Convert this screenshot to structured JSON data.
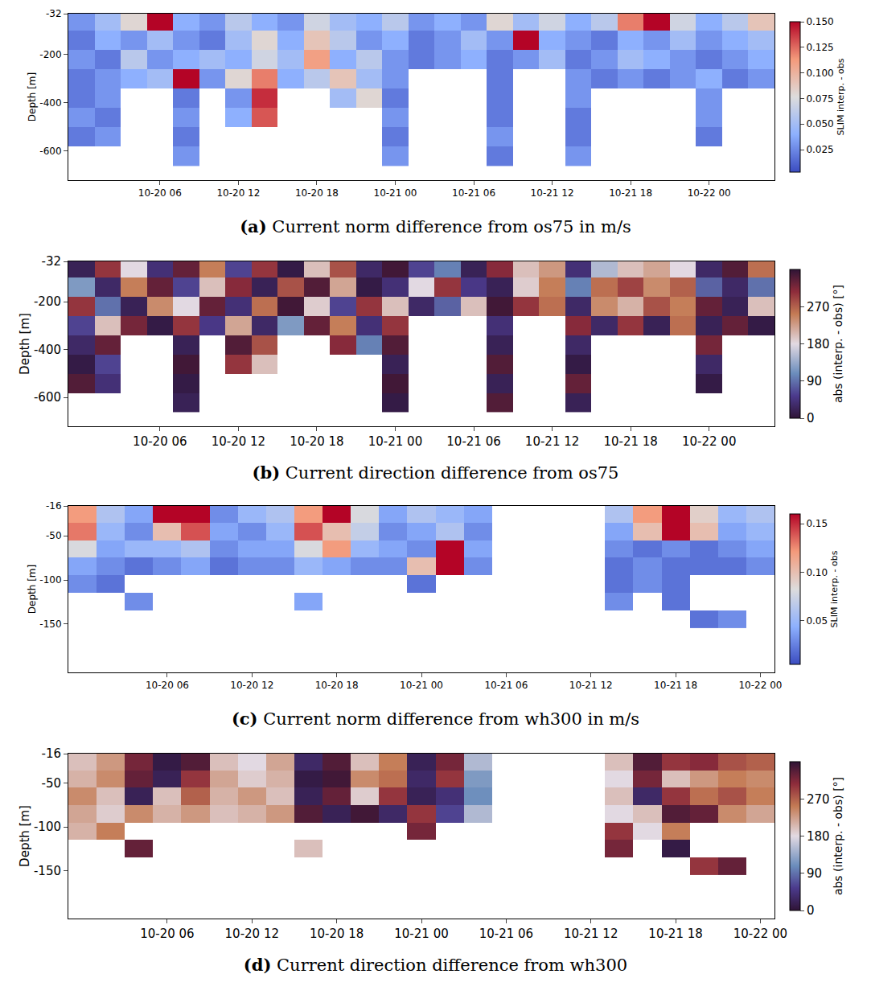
{
  "chart_data": [
    {
      "type": "heatmap",
      "panel": "(a)",
      "title": "Current norm difference from os75 in m/s",
      "y_label": "Depth [m]",
      "colorbar_title": "SLIM interp. - obs",
      "color": "coolwarm",
      "categories": [
        null,
        null,
        null,
        "10-20 06",
        null,
        null,
        "10-20 12",
        null,
        null,
        "10-20 18",
        null,
        null,
        "10-21 00",
        null,
        null,
        "10-21 06",
        null,
        null,
        "10-21 12",
        null,
        null,
        "10-21 18",
        null,
        null,
        "10-22 00",
        null,
        null
      ],
      "y": [
        -60,
        -140,
        -220,
        -300,
        -380,
        -460,
        -540,
        -620
      ],
      "z": [
        [
          0.03,
          0.05,
          0.08,
          0.15,
          0.04,
          0.03,
          0.06,
          0.04,
          0.03,
          0.07,
          0.05,
          0.04,
          0.06,
          0.03,
          0.04,
          0.03,
          0.08,
          0.05,
          0.07,
          0.04,
          0.06,
          0.12,
          0.15,
          0.07,
          0.04,
          0.06,
          0.09
        ],
        [
          0.02,
          0.04,
          0.03,
          0.05,
          0.03,
          0.02,
          0.05,
          0.08,
          0.04,
          0.09,
          0.06,
          0.03,
          0.04,
          0.02,
          0.03,
          0.05,
          0.03,
          0.15,
          0.04,
          0.03,
          0.02,
          0.04,
          0.03,
          0.05,
          0.03,
          0.04,
          0.05
        ],
        [
          0.03,
          0.02,
          0.06,
          0.03,
          0.04,
          0.05,
          0.04,
          0.07,
          0.05,
          0.11,
          0.04,
          0.06,
          0.03,
          0.02,
          0.03,
          0.04,
          0.02,
          0.03,
          0.05,
          0.02,
          0.03,
          0.05,
          0.04,
          0.03,
          0.02,
          0.03,
          0.04
        ],
        [
          0.02,
          0.03,
          0.04,
          0.05,
          0.15,
          0.03,
          0.08,
          0.12,
          0.04,
          0.06,
          0.09,
          0.05,
          0.03,
          null,
          null,
          null,
          0.02,
          null,
          null,
          0.03,
          0.02,
          0.03,
          0.02,
          0.03,
          0.04,
          0.02,
          0.03
        ],
        [
          0.02,
          0.03,
          null,
          null,
          0.02,
          null,
          0.03,
          0.14,
          null,
          null,
          0.05,
          0.08,
          0.02,
          null,
          null,
          null,
          0.02,
          null,
          null,
          0.03,
          null,
          null,
          null,
          null,
          0.03,
          null,
          null
        ],
        [
          0.03,
          0.02,
          null,
          null,
          0.03,
          null,
          0.04,
          0.13,
          null,
          null,
          null,
          null,
          0.03,
          null,
          null,
          null,
          0.02,
          null,
          null,
          0.02,
          null,
          null,
          null,
          null,
          0.03,
          null,
          null
        ],
        [
          0.02,
          0.03,
          null,
          null,
          0.02,
          null,
          null,
          null,
          null,
          null,
          null,
          null,
          0.02,
          null,
          null,
          null,
          0.03,
          null,
          null,
          0.02,
          null,
          null,
          null,
          null,
          0.02,
          null,
          null
        ],
        [
          null,
          null,
          null,
          null,
          0.03,
          null,
          null,
          null,
          null,
          null,
          null,
          null,
          0.03,
          null,
          null,
          null,
          0.02,
          null,
          null,
          0.03,
          null,
          null,
          null,
          null,
          null,
          null,
          null
        ]
      ],
      "ylim": [
        -720,
        -32
      ],
      "yticks": [
        -32,
        -200,
        -400,
        -600
      ],
      "colorbar_range": [
        0.003,
        0.15
      ],
      "colorbar_ticks": [
        0.025,
        {
          "value": 0.05,
          "label": "0.050"
        },
        0.075,
        {
          "value": 0.1,
          "label": "0.100"
        },
        0.125,
        {
          "value": 0.15,
          "label": "0.150"
        }
      ]
    },
    {
      "type": "heatmap",
      "panel": "(b)",
      "title": "Current direction difference from os75",
      "y_label": "Depth [m]",
      "colorbar_title": "abs (interp. - obs) [°]",
      "color": "twilight",
      "categories": [
        null,
        null,
        null,
        "10-20 06",
        null,
        null,
        "10-20 12",
        null,
        null,
        "10-20 18",
        null,
        null,
        "10-21 00",
        null,
        null,
        "10-21 06",
        null,
        null,
        "10-21 12",
        null,
        null,
        "10-21 18",
        null,
        null,
        "10-22 00",
        null,
        null
      ],
      "y": [
        -60,
        -140,
        -220,
        -300,
        -380,
        -460,
        -540,
        -620
      ],
      "z": [
        [
          20,
          300,
          180,
          40,
          330,
          250,
          60,
          300,
          10,
          200,
          280,
          30,
          350,
          60,
          100,
          20,
          310,
          200,
          230,
          40,
          150,
          200,
          220,
          180,
          30,
          340,
          260
        ],
        [
          120,
          30,
          250,
          330,
          60,
          200,
          310,
          20,
          280,
          340,
          220,
          10,
          40,
          180,
          300,
          50,
          20,
          190,
          250,
          100,
          260,
          290,
          240,
          270,
          80,
          30,
          90
        ],
        [
          300,
          90,
          20,
          240,
          180,
          330,
          40,
          260,
          350,
          190,
          60,
          300,
          200,
          30,
          80,
          200,
          350,
          300,
          260,
          30,
          240,
          210,
          280,
          250,
          330,
          20,
          200
        ],
        [
          60,
          200,
          320,
          10,
          300,
          50,
          220,
          30,
          120,
          330,
          250,
          40,
          300,
          null,
          null,
          null,
          40,
          null,
          null,
          310,
          30,
          300,
          20,
          260,
          20,
          330,
          10
        ],
        [
          30,
          330,
          null,
          null,
          20,
          null,
          340,
          280,
          null,
          null,
          310,
          100,
          340,
          null,
          null,
          null,
          20,
          null,
          null,
          30,
          null,
          null,
          null,
          null,
          320,
          null,
          null
        ],
        [
          10,
          60,
          null,
          null,
          350,
          null,
          300,
          200,
          null,
          null,
          null,
          null,
          20,
          null,
          null,
          null,
          340,
          null,
          null,
          10,
          null,
          null,
          null,
          null,
          30,
          null,
          null
        ],
        [
          340,
          40,
          null,
          null,
          10,
          null,
          null,
          null,
          null,
          null,
          null,
          null,
          350,
          null,
          null,
          null,
          20,
          null,
          null,
          330,
          null,
          null,
          null,
          null,
          10,
          null,
          null
        ],
        [
          null,
          null,
          null,
          null,
          20,
          null,
          null,
          null,
          null,
          null,
          null,
          null,
          10,
          null,
          null,
          null,
          340,
          null,
          null,
          20,
          null,
          null,
          null,
          null,
          null,
          null,
          null
        ]
      ],
      "ylim": [
        -720,
        -32
      ],
      "yticks": [
        -32,
        -200,
        -400,
        -600
      ],
      "colorbar_range": [
        0,
        360
      ],
      "colorbar_ticks": [
        0,
        90,
        180,
        270
      ]
    },
    {
      "type": "heatmap",
      "panel": "(c)",
      "title": "Current norm difference from wh300 in m/s",
      "y_label": "Depth [m]",
      "colorbar_title": "SLIM interp. - obs",
      "color": "coolwarm",
      "categories": [
        null,
        null,
        null,
        "10-20 06",
        null,
        null,
        "10-20 12",
        null,
        null,
        "10-20 18",
        null,
        null,
        "10-21 00",
        null,
        null,
        "10-21 06",
        null,
        null,
        "10-21 12",
        null,
        null,
        "10-21 18",
        null,
        null,
        "10-22 00"
      ],
      "y": [
        -25,
        -45,
        -65,
        -85,
        -105,
        -125,
        -145
      ],
      "z": [
        [
          0.12,
          0.06,
          0.04,
          0.16,
          0.16,
          0.03,
          0.05,
          0.06,
          0.12,
          0.16,
          0.08,
          0.04,
          0.06,
          0.05,
          0.04,
          null,
          null,
          null,
          null,
          0.06,
          0.12,
          0.16,
          0.09,
          0.05,
          0.06
        ],
        [
          0.13,
          0.05,
          0.03,
          0.1,
          0.14,
          0.04,
          0.03,
          0.05,
          0.14,
          0.1,
          0.07,
          0.03,
          0.04,
          0.06,
          0.03,
          null,
          null,
          null,
          null,
          0.04,
          0.1,
          0.16,
          0.1,
          0.04,
          0.05
        ],
        [
          0.08,
          0.04,
          0.05,
          0.05,
          0.06,
          0.03,
          0.04,
          0.04,
          0.08,
          0.12,
          0.05,
          0.04,
          0.03,
          0.16,
          0.04,
          null,
          null,
          null,
          null,
          0.03,
          0.02,
          0.03,
          0.02,
          0.03,
          0.04
        ],
        [
          0.04,
          0.03,
          0.02,
          0.03,
          0.04,
          0.02,
          0.03,
          0.03,
          0.05,
          0.04,
          0.03,
          0.03,
          0.1,
          0.16,
          0.03,
          null,
          null,
          null,
          null,
          0.02,
          0.03,
          0.02,
          0.02,
          0.02,
          0.03
        ],
        [
          0.03,
          0.02,
          null,
          null,
          null,
          null,
          null,
          null,
          null,
          null,
          null,
          null,
          0.02,
          null,
          null,
          null,
          null,
          null,
          null,
          0.02,
          0.03,
          0.02,
          null,
          null,
          null
        ],
        [
          null,
          null,
          0.03,
          null,
          null,
          null,
          null,
          null,
          0.04,
          null,
          null,
          null,
          null,
          null,
          null,
          null,
          null,
          null,
          null,
          0.03,
          null,
          0.02,
          null,
          null,
          null
        ],
        [
          null,
          null,
          null,
          null,
          null,
          null,
          null,
          null,
          null,
          null,
          null,
          null,
          null,
          null,
          null,
          null,
          null,
          null,
          null,
          null,
          null,
          null,
          0.02,
          0.03,
          null
        ]
      ],
      "ylim": [
        -205,
        -16
      ],
      "yticks": [
        -16,
        -50,
        -100,
        -150
      ],
      "colorbar_range": [
        0.005,
        0.16
      ],
      "colorbar_ticks": [
        0.05,
        {
          "value": 0.1,
          "label": "0.10"
        },
        0.15
      ]
    },
    {
      "type": "heatmap",
      "panel": "(d)",
      "title": "Current direction difference from wh300",
      "y_label": "Depth [m]",
      "colorbar_title": "abs (interp. - obs) [°]",
      "color": "twilight",
      "categories": [
        null,
        null,
        null,
        "10-20 06",
        null,
        null,
        "10-20 12",
        null,
        null,
        "10-20 18",
        null,
        null,
        "10-21 00",
        null,
        null,
        "10-21 06",
        null,
        null,
        "10-21 12",
        null,
        null,
        "10-21 18",
        null,
        null,
        "10-22 00"
      ],
      "y": [
        -25,
        -45,
        -65,
        -85,
        -105,
        -125,
        -145
      ],
      "z": [
        [
          200,
          230,
          320,
          10,
          340,
          200,
          180,
          220,
          30,
          340,
          200,
          250,
          20,
          320,
          150,
          null,
          null,
          null,
          null,
          200,
          340,
          300,
          310,
          280,
          270
        ],
        [
          210,
          240,
          330,
          20,
          300,
          220,
          190,
          210,
          10,
          350,
          240,
          260,
          30,
          300,
          120,
          null,
          null,
          null,
          null,
          180,
          320,
          200,
          230,
          250,
          240
        ],
        [
          240,
          200,
          20,
          200,
          270,
          210,
          230,
          200,
          20,
          330,
          190,
          300,
          20,
          40,
          110,
          null,
          null,
          null,
          null,
          200,
          30,
          300,
          260,
          280,
          250
        ],
        [
          220,
          190,
          240,
          210,
          230,
          200,
          210,
          230,
          340,
          20,
          350,
          30,
          300,
          60,
          150,
          null,
          null,
          null,
          null,
          180,
          200,
          340,
          330,
          240,
          220
        ],
        [
          210,
          250,
          null,
          null,
          null,
          null,
          null,
          null,
          null,
          null,
          null,
          null,
          320,
          null,
          null,
          null,
          null,
          null,
          null,
          300,
          180,
          250,
          null,
          null,
          null
        ],
        [
          null,
          null,
          330,
          null,
          null,
          null,
          null,
          null,
          200,
          null,
          null,
          null,
          null,
          null,
          null,
          null,
          null,
          null,
          null,
          320,
          null,
          10,
          null,
          null,
          null
        ],
        [
          null,
          null,
          null,
          null,
          null,
          null,
          null,
          null,
          null,
          null,
          null,
          null,
          null,
          null,
          null,
          null,
          null,
          null,
          null,
          null,
          null,
          null,
          300,
          330,
          null
        ]
      ],
      "ylim": [
        -205,
        -16
      ],
      "yticks": [
        -16,
        -50,
        -100,
        -150
      ],
      "colorbar_range": [
        0,
        360
      ],
      "colorbar_ticks": [
        0,
        90,
        180,
        270
      ]
    }
  ]
}
